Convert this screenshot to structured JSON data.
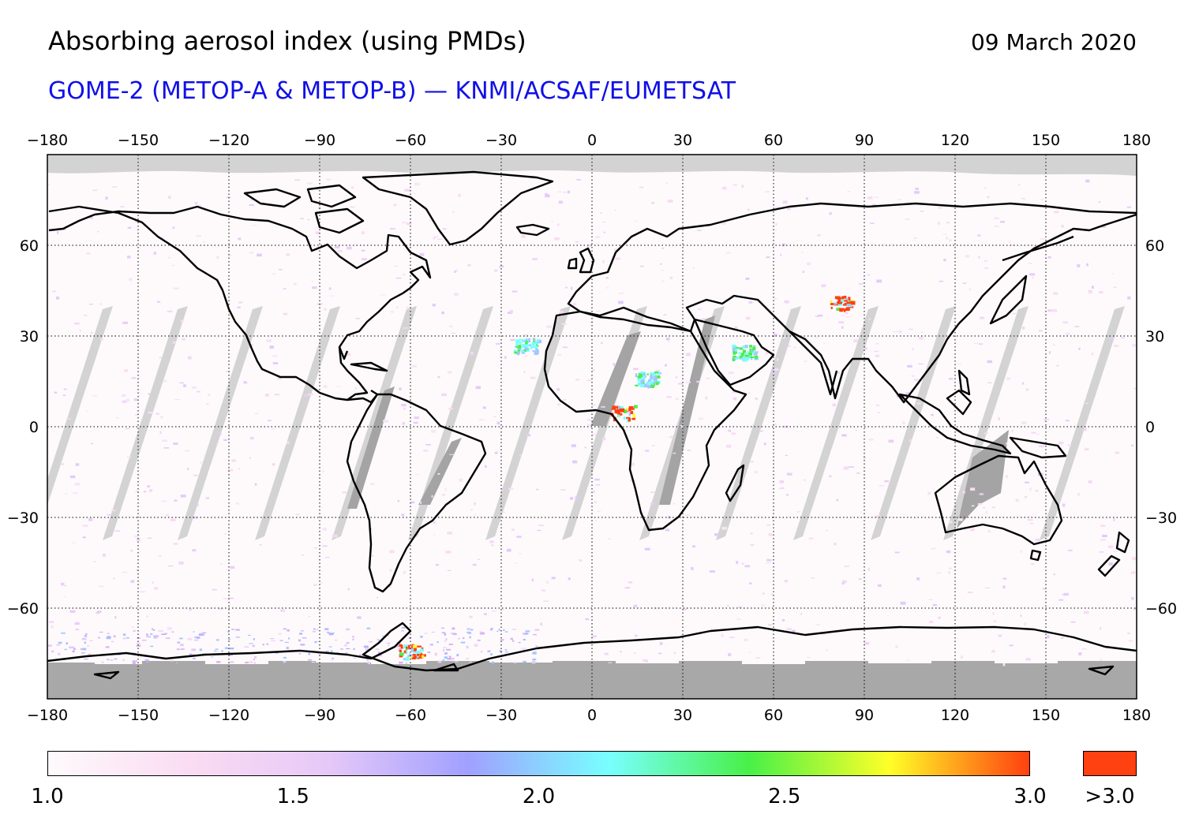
{
  "header": {
    "title": "Absorbing aerosol index (using PMDs)",
    "date": "09 March 2020",
    "subtitle": "GOME-2 (METOP-A & METOP-B) — KNMI/ACSAF/EUMETSAT"
  },
  "map": {
    "projection": "plate carree",
    "lon_range": [
      -180,
      180
    ],
    "lat_range": [
      -90,
      90
    ],
    "lon_ticks": [
      -180,
      -150,
      -120,
      -90,
      -60,
      -30,
      0,
      30,
      60,
      90,
      120,
      150,
      180
    ],
    "lon_tick_labels": [
      "−180",
      "−150",
      "−120",
      "−90",
      "−60",
      "−30",
      "0",
      "30",
      "60",
      "90",
      "120",
      "150",
      "180"
    ],
    "lat_ticks": [
      60,
      30,
      0,
      -30,
      -60
    ],
    "lat_tick_labels": [
      "60",
      "30",
      "0",
      "−30",
      "−60"
    ],
    "grid": "dotted",
    "colors": {
      "no_data": "#d3d3d3",
      "polar_night": "#a8a8a8",
      "coastline": "#000000",
      "background": "#fefafc"
    },
    "aerosol_hotspots": [
      {
        "region": "Taklamakan / Tarim basin",
        "lon": 82,
        "lat": 41,
        "level": ">3.0"
      },
      {
        "region": "Arabian Peninsula",
        "lon": 50,
        "lat": 25,
        "level": 2.3
      },
      {
        "region": "Chad / Sahara",
        "lon": 18,
        "lat": 16,
        "level": 2.6
      },
      {
        "region": "West Africa coast",
        "lon": 10,
        "lat": 5,
        "level": ">3.0"
      },
      {
        "region": "Western Sahara",
        "lon": -22,
        "lat": 27,
        "level": 2.3
      },
      {
        "region": "Antarctic Peninsula",
        "lon": -60,
        "lat": -74,
        "level": ">3.0"
      }
    ]
  },
  "colorbar": {
    "min": 1.0,
    "max": 3.0,
    "tick_labels": [
      "1.0",
      "1.5",
      "2.0",
      "2.5",
      "3.0"
    ],
    "tick_values": [
      1.0,
      1.5,
      2.0,
      2.5,
      3.0
    ],
    "overflow_label": ">3.0",
    "stops": [
      "#fefafc",
      "#fadcf2",
      "#e6c8f8",
      "#a0a0ff",
      "#78ffff",
      "#48f048",
      "#ffff28",
      "#ff4010"
    ],
    "overflow_color": "#ff4010"
  }
}
